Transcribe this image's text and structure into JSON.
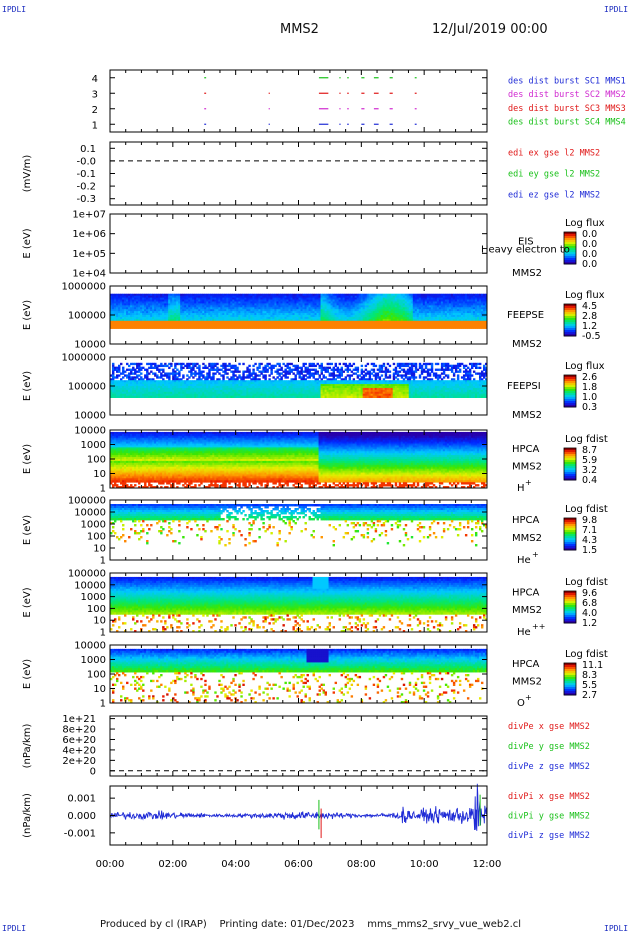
{
  "header": {
    "corner_label": "IPDLI",
    "spacecraft": "MMS2",
    "datetime": "12/Jul/2019 00:00"
  },
  "footer": {
    "produced_by": "Produced by cl (IRAP)",
    "printing_date": "Printing date: 01/Dec/2023",
    "script_name": "mms_mms2_srvy_vue_web2.cl"
  },
  "colors": {
    "burst_sc1": "#1f2bd6",
    "burst_sc2": "#d02ad0",
    "burst_sc3": "#e01818",
    "burst_sc4": "#18c018",
    "comp_x": "#e01818",
    "comp_y": "#18c018",
    "comp_z": "#1f2bd6"
  },
  "chart_data": [
    {
      "id": "burst",
      "type": "scatter",
      "ylabel": "",
      "ylim": [
        0.5,
        4.5
      ],
      "yticks": [
        "1",
        "2",
        "3",
        "4"
      ],
      "legend": [
        "des dist burst SC1 MMS1",
        "des dist burst SC2 MMS2",
        "des dist burst SC3 MMS3",
        "des dist burst SC4 MMS4"
      ],
      "series": [
        {
          "name": "des dist burst SC1 MMS1",
          "y": 1,
          "intervals": [
            [
              3.0,
              3.06
            ],
            [
              5.05,
              5.07
            ],
            [
              6.65,
              6.95
            ],
            [
              7.3,
              7.34
            ],
            [
              7.55,
              7.6
            ],
            [
              8.0,
              8.1
            ],
            [
              8.4,
              8.55
            ],
            [
              8.9,
              9.0
            ],
            [
              9.7,
              9.76
            ]
          ]
        },
        {
          "name": "des dist burst SC2 MMS2",
          "y": 2,
          "intervals": [
            [
              3.0,
              3.06
            ],
            [
              5.05,
              5.07
            ],
            [
              6.65,
              6.95
            ],
            [
              7.3,
              7.34
            ],
            [
              7.55,
              7.6
            ],
            [
              8.0,
              8.1
            ],
            [
              8.4,
              8.55
            ],
            [
              8.9,
              9.0
            ],
            [
              9.7,
              9.76
            ]
          ]
        },
        {
          "name": "des dist burst SC3 MMS3",
          "y": 3,
          "intervals": [
            [
              3.0,
              3.06
            ],
            [
              5.05,
              5.07
            ],
            [
              6.65,
              6.95
            ],
            [
              7.3,
              7.34
            ],
            [
              7.55,
              7.6
            ],
            [
              8.0,
              8.1
            ],
            [
              8.4,
              8.55
            ],
            [
              8.9,
              9.0
            ],
            [
              9.7,
              9.76
            ]
          ]
        },
        {
          "name": "des dist burst SC4 MMS4",
          "y": 4,
          "intervals": [
            [
              3.0,
              3.06
            ],
            [
              6.65,
              6.95
            ],
            [
              7.3,
              7.34
            ],
            [
              7.55,
              7.6
            ],
            [
              8.0,
              8.1
            ],
            [
              8.4,
              8.55
            ],
            [
              8.9,
              9.0
            ],
            [
              9.7,
              9.76
            ]
          ]
        }
      ]
    },
    {
      "id": "edi",
      "type": "line",
      "ylabel": "(mV/m)",
      "ylim": [
        -0.35,
        0.15
      ],
      "yticks": [
        "0.1",
        "-0.0",
        "-0.1",
        "-0.2",
        "-0.3"
      ],
      "ytick_values": [
        0.1,
        0.0,
        -0.1,
        -0.2,
        -0.3
      ],
      "zero_line": 0,
      "legend": [
        "edi ex gse l2 MMS2",
        "edi ey gse l2 MMS2",
        "edi ez gse l2 MMS2"
      ]
    },
    {
      "id": "eis",
      "type": "heatmap",
      "ylabel": "E (eV)",
      "yticks": [
        "1e+07",
        "1e+06",
        "1e+05",
        "1e+04"
      ],
      "log_range": [
        4,
        7
      ],
      "instrument": "EIS",
      "spacecraft": "MMS2",
      "overlay_text": "Heavy electron to",
      "colorbar_title": "Log flux",
      "colorbar_ticks": [
        "0.0",
        "0.0",
        "0.0",
        "0.0"
      ]
    },
    {
      "id": "feepse",
      "type": "heatmap",
      "ylabel": "E (eV)",
      "yticks": [
        "1000000",
        "100000",
        "10000"
      ],
      "log_range": [
        4,
        6
      ],
      "instrument": "FEEPSE",
      "spacecraft": "MMS2",
      "colorbar_title": "Log flux",
      "colorbar_ticks": [
        "4.5",
        "2.8",
        "1.2",
        "-0.5"
      ]
    },
    {
      "id": "feepsi",
      "type": "heatmap",
      "ylabel": "E (eV)",
      "yticks": [
        "1000000",
        "100000",
        "10000"
      ],
      "log_range": [
        4,
        6
      ],
      "instrument": "FEEPSI",
      "spacecraft": "MMS2",
      "colorbar_title": "Log flux",
      "colorbar_ticks": [
        "2.6",
        "1.8",
        "1.0",
        "0.3"
      ]
    },
    {
      "id": "hpca_h",
      "type": "heatmap",
      "ylabel": "E (eV)",
      "yticks": [
        "10000",
        "1000",
        "100",
        "10",
        "1"
      ],
      "log_range": [
        0,
        4.5
      ],
      "instrument": "HPCA",
      "spacecraft": "MMS2",
      "species": "H",
      "charge": "+",
      "colorbar_title": "Log fdist",
      "colorbar_ticks": [
        "8.7",
        "5.9",
        "3.2",
        "0.4"
      ]
    },
    {
      "id": "hpca_he",
      "type": "heatmap",
      "ylabel": "E (eV)",
      "yticks": [
        "100000",
        "10000",
        "1000",
        "100",
        "10",
        "1"
      ],
      "log_range": [
        0,
        5
      ],
      "instrument": "HPCA",
      "spacecraft": "MMS2",
      "species": "He",
      "charge": "+",
      "colorbar_title": "Log fdist",
      "colorbar_ticks": [
        "9.8",
        "7.1",
        "4.3",
        "1.5"
      ]
    },
    {
      "id": "hpca_hepp",
      "type": "heatmap",
      "ylabel": "E (eV)",
      "yticks": [
        "100000",
        "10000",
        "1000",
        "100",
        "10",
        "1"
      ],
      "log_range": [
        0,
        5
      ],
      "instrument": "HPCA",
      "spacecraft": "MMS2",
      "species": "He",
      "charge": "++",
      "colorbar_title": "Log fdist",
      "colorbar_ticks": [
        "9.6",
        "6.8",
        "4.0",
        "1.2"
      ]
    },
    {
      "id": "hpca_o",
      "type": "heatmap",
      "ylabel": "E (eV)",
      "yticks": [
        "10000",
        "1000",
        "100",
        "10",
        "1"
      ],
      "log_range": [
        0,
        4.5
      ],
      "instrument": "HPCA",
      "spacecraft": "MMS2",
      "species": "O",
      "charge": "+",
      "colorbar_title": "Log fdist",
      "colorbar_ticks": [
        "11.1",
        "8.3",
        "5.5",
        "2.7"
      ]
    },
    {
      "id": "divpe",
      "type": "line",
      "ylabel": "(nPa/km)",
      "ylim": [
        -1e+20,
        1.05e+21
      ],
      "yticks": [
        "1e+21",
        "8e+20",
        "6e+20",
        "4e+20",
        "2e+20",
        "0"
      ],
      "ytick_values": [
        1e+21,
        8e+20,
        6e+20,
        4e+20,
        2e+20,
        0
      ],
      "zero_line": 0,
      "legend": [
        "divPe x gse MMS2",
        "divPe y gse MMS2",
        "divPe z gse MMS2"
      ]
    },
    {
      "id": "divpi",
      "type": "line",
      "ylabel": "(nPa/km)",
      "ylim": [
        -0.0017,
        0.0017
      ],
      "yticks": [
        "0.001",
        "0.000",
        "-0.001"
      ],
      "ytick_values": [
        0.001,
        0.0,
        -0.001
      ],
      "legend": [
        "divPi x gse MMS2",
        "divPi y gse MMS2",
        "divPi z gse MMS2"
      ]
    }
  ],
  "x_axis": {
    "xlim": [
      0,
      12
    ],
    "ticks": [
      "00:00",
      "02:00",
      "04:00",
      "06:00",
      "08:00",
      "10:00",
      "12:00"
    ],
    "tick_values": [
      0,
      2,
      4,
      6,
      8,
      10,
      12
    ]
  }
}
